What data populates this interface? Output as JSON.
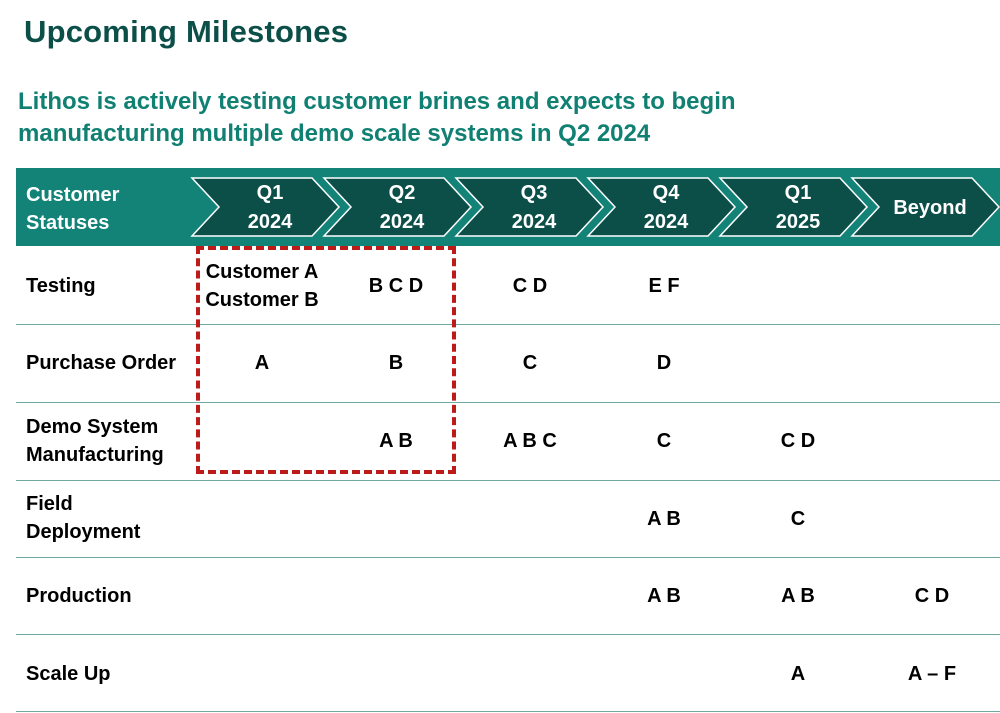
{
  "title": "Upcoming Milestones",
  "subtitle": "Lithos is actively testing customer brines and expects to begin manufacturing multiple demo scale systems in Q2 2024",
  "table": {
    "status_header": "Customer Statuses",
    "periods": [
      {
        "line1": "Q1",
        "line2": "2024"
      },
      {
        "line1": "Q2",
        "line2": "2024"
      },
      {
        "line1": "Q3",
        "line2": "2024"
      },
      {
        "line1": "Q4",
        "line2": "2024"
      },
      {
        "line1": "Q1",
        "line2": "2025"
      },
      {
        "line1": "Beyond",
        "line2": ""
      }
    ],
    "rows": [
      {
        "label": "Testing",
        "cells": [
          "Customer A\nCustomer B",
          "B C D",
          "C D",
          "E F",
          "",
          ""
        ]
      },
      {
        "label": "Purchase Order",
        "cells": [
          "A",
          "B",
          "C",
          "D",
          "",
          ""
        ]
      },
      {
        "label": "Demo System Manufacturing",
        "cells": [
          "",
          "A B",
          "A B C",
          "C",
          "C D",
          ""
        ]
      },
      {
        "label": "Field Deployment",
        "cells": [
          "",
          "",
          "",
          "A B",
          "C",
          ""
        ]
      },
      {
        "label": "Production",
        "cells": [
          "",
          "",
          "",
          "A B",
          "A B",
          "C D"
        ]
      },
      {
        "label": "Scale Up",
        "cells": [
          "",
          "",
          "",
          "",
          "A",
          "A – F"
        ]
      }
    ]
  },
  "colors": {
    "title": "#0c4f49",
    "subtitle": "#108073",
    "header_bar": "#138378",
    "chevron_fill": "#0c4f49",
    "chevron_outline": "#ffffff",
    "highlight_border": "#bd1a1a",
    "row_separator": "#6fa7a1"
  }
}
